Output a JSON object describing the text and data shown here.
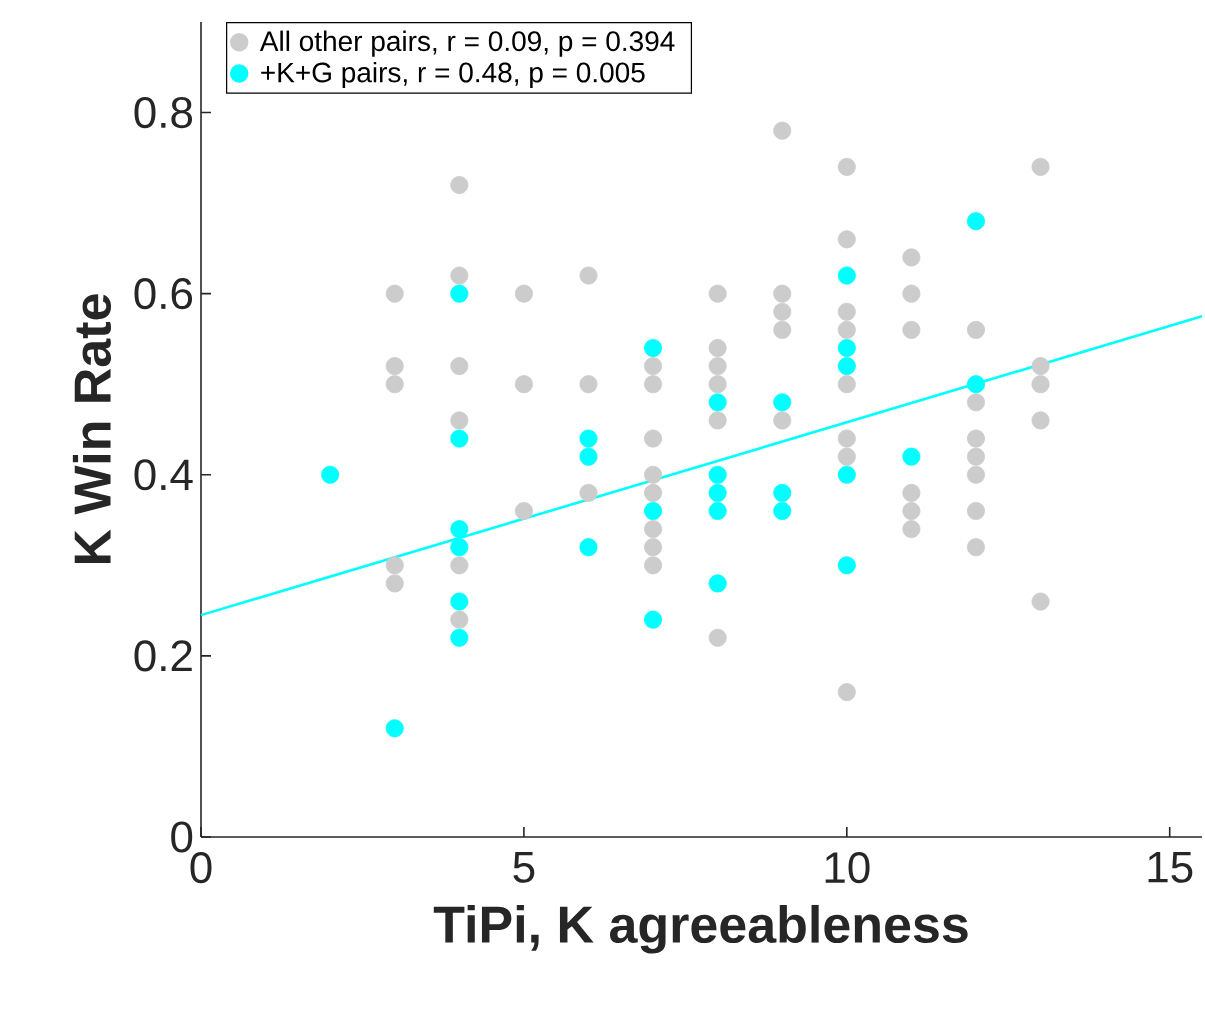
{
  "chart_data": {
    "type": "scatter",
    "xlabel": "TiPi,  K agreeableness",
    "ylabel": "K Win Rate",
    "xlim": [
      0,
      15.5
    ],
    "ylim": [
      0,
      0.9
    ],
    "xticks": [
      0,
      5,
      10,
      15
    ],
    "yticks": [
      0,
      0.2,
      0.4,
      0.6,
      0.8
    ],
    "grid": false,
    "legend": "top left",
    "series": [
      {
        "name": "All other pairs, r = 0.09, p = 0.394",
        "marker": "circle",
        "color": "#cccccc",
        "x": [
          3,
          3,
          3,
          3,
          3,
          4,
          4,
          4,
          4,
          4,
          4,
          5,
          5,
          5,
          6,
          6,
          6,
          7,
          7,
          7,
          7,
          7,
          7,
          7,
          7,
          8,
          8,
          8,
          8,
          8,
          8,
          9,
          9,
          9,
          9,
          9,
          10,
          10,
          10,
          10,
          10,
          10,
          10,
          10,
          11,
          11,
          11,
          11,
          11,
          11,
          12,
          12,
          12,
          12,
          12,
          12,
          12,
          13,
          13,
          13,
          13,
          13
        ],
        "values": [
          0.6,
          0.52,
          0.5,
          0.3,
          0.28,
          0.72,
          0.62,
          0.52,
          0.46,
          0.3,
          0.24,
          0.6,
          0.5,
          0.36,
          0.62,
          0.5,
          0.38,
          0.52,
          0.5,
          0.44,
          0.4,
          0.38,
          0.34,
          0.32,
          0.3,
          0.6,
          0.54,
          0.52,
          0.5,
          0.46,
          0.22,
          0.78,
          0.6,
          0.58,
          0.56,
          0.46,
          0.74,
          0.66,
          0.58,
          0.56,
          0.5,
          0.44,
          0.42,
          0.16,
          0.64,
          0.6,
          0.56,
          0.38,
          0.36,
          0.34,
          0.56,
          0.48,
          0.44,
          0.42,
          0.4,
          0.36,
          0.32,
          0.74,
          0.52,
          0.5,
          0.46,
          0.26
        ]
      },
      {
        "name": "+K+G pairs, r = 0.48, p = 0.005",
        "marker": "circle",
        "color": "#00ffff",
        "x": [
          2,
          3,
          4,
          4,
          4,
          4,
          4,
          4,
          6,
          6,
          6,
          7,
          7,
          7,
          8,
          8,
          8,
          8,
          8,
          9,
          9,
          9,
          10,
          10,
          10,
          10,
          10,
          11,
          12,
          12
        ],
        "values": [
          0.4,
          0.12,
          0.6,
          0.44,
          0.34,
          0.32,
          0.26,
          0.22,
          0.44,
          0.42,
          0.32,
          0.54,
          0.36,
          0.24,
          0.48,
          0.4,
          0.38,
          0.36,
          0.28,
          0.48,
          0.38,
          0.36,
          0.62,
          0.54,
          0.52,
          0.4,
          0.3,
          0.42,
          0.68,
          0.5
        ]
      },
      {
        "type": "line",
        "marker": "none",
        "color": "#00ffff",
        "x": [
          0,
          15.5
        ],
        "values": [
          0.245,
          0.575
        ]
      }
    ]
  }
}
